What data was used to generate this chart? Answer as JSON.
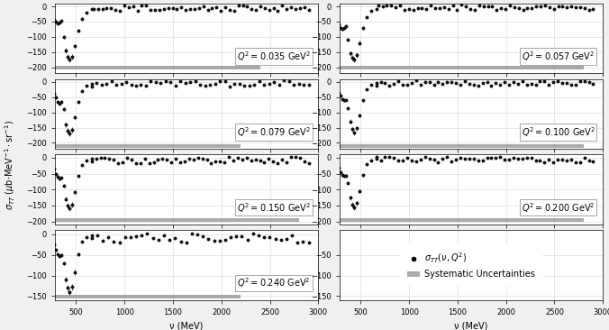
{
  "panels": [
    {
      "q2": "0.035",
      "row": 0,
      "col": 0,
      "ylim": [
        -220,
        10
      ],
      "yticks": [
        0,
        -50,
        -100,
        -150,
        -200
      ],
      "xmax": 3000,
      "syst_yval": -200,
      "syst_xend": 2400
    },
    {
      "q2": "0.057",
      "row": 0,
      "col": 1,
      "ylim": [
        -220,
        10
      ],
      "yticks": [
        0,
        -50,
        -100,
        -150,
        -200
      ],
      "xmax": 3000,
      "syst_yval": -200,
      "syst_xend": 2800
    },
    {
      "q2": "0.079",
      "row": 1,
      "col": 0,
      "ylim": [
        -220,
        10
      ],
      "yticks": [
        0,
        -50,
        -100,
        -150,
        -200
      ],
      "xmax": 3000,
      "syst_yval": -210,
      "syst_xend": 2200
    },
    {
      "q2": "0.100",
      "row": 1,
      "col": 1,
      "ylim": [
        -220,
        10
      ],
      "yticks": [
        0,
        -50,
        -100,
        -150,
        -200
      ],
      "xmax": 3000,
      "syst_yval": -210,
      "syst_xend": 2800
    },
    {
      "q2": "0.150",
      "row": 2,
      "col": 0,
      "ylim": [
        -210,
        10
      ],
      "yticks": [
        0,
        -50,
        -100,
        -150,
        -200
      ],
      "xmax": 3000,
      "syst_yval": -195,
      "syst_xend": 2800
    },
    {
      "q2": "0.200",
      "row": 2,
      "col": 1,
      "ylim": [
        -210,
        10
      ],
      "yticks": [
        0,
        -50,
        -100,
        -150,
        -200
      ],
      "xmax": 3000,
      "syst_yval": -195,
      "syst_xend": 2800
    },
    {
      "q2": "0.240",
      "row": 3,
      "col": 0,
      "ylim": [
        -160,
        10
      ],
      "yticks": [
        0,
        -50,
        -100,
        -150
      ],
      "xmax": 3000,
      "syst_yval": -152,
      "syst_xend": 2200
    }
  ],
  "xlabel": "ν (MeV)",
  "ylabel": "σ_TT (μb·MeV⁻¹·sr⁻¹)",
  "bg_color": "#f0f0f0",
  "panel_bg": "#ffffff",
  "data_color": "#111111",
  "syst_color": "#888888",
  "grid_color": "#cccccc",
  "label_fontsize": 7,
  "tick_fontsize": 6,
  "annot_fontsize": 7,
  "hspace": 0.08,
  "wspace": 0.08
}
